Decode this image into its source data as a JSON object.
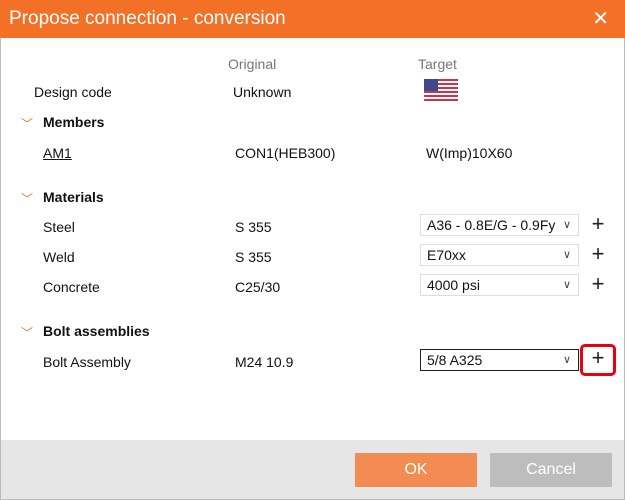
{
  "dialog": {
    "title": "Propose connection - conversion"
  },
  "columns": {
    "original": "Original",
    "target": "Target"
  },
  "design_code": {
    "label": "Design code",
    "original": "Unknown",
    "target_flag": "us-flag-icon"
  },
  "members": {
    "header": "Members",
    "rows": [
      {
        "label": "AM1",
        "original": "CON1(HEB300)",
        "target": "W(Imp)10X60"
      }
    ]
  },
  "materials": {
    "header": "Materials",
    "rows": [
      {
        "label": "Steel",
        "original": "S 355",
        "target": "A36 - 0.8E/G - 0.9Fy"
      },
      {
        "label": "Weld",
        "original": "S 355",
        "target": "E70xx"
      },
      {
        "label": "Concrete",
        "original": "C25/30",
        "target": "4000 psi"
      }
    ]
  },
  "bolts": {
    "header": "Bolt assemblies",
    "rows": [
      {
        "label": "Bolt Assembly",
        "original": "M24 10.9",
        "target": "5/8 A325"
      }
    ]
  },
  "buttons": {
    "ok": "OK",
    "cancel": "Cancel"
  },
  "colors": {
    "accent": "#f37027",
    "highlight": "#e8000f"
  }
}
